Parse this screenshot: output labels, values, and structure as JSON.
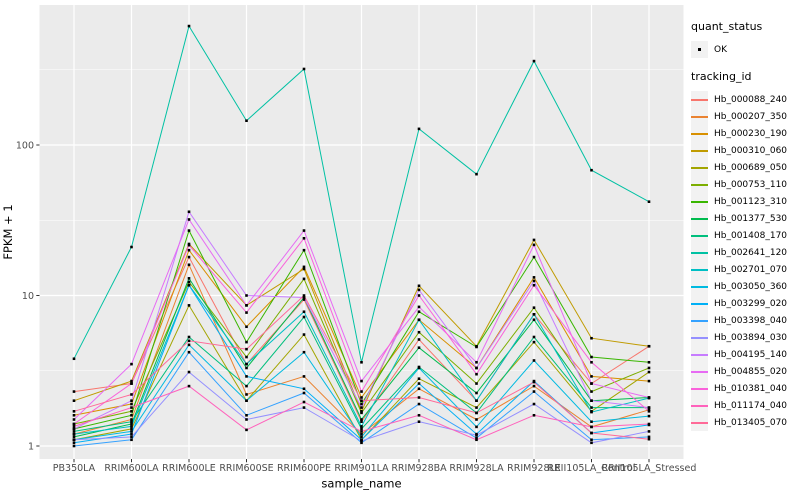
{
  "chart_data": {
    "type": "line",
    "title": "",
    "xlabel": "sample_name",
    "ylabel": "FPKM + 1",
    "y_scale": "log10",
    "ylim": [
      0.82,
      850
    ],
    "grid": true,
    "legend_position": "right",
    "panel_bg": "#EBEBEB",
    "grid_color": "#FFFFFF",
    "tick_label_color": "#4D4D4D",
    "marker": "small-black-square",
    "y_ticks": [
      1,
      10,
      100
    ],
    "y_minor": [
      3.162,
      31.62,
      316.2
    ],
    "categories": [
      "PB350LA",
      "RRIM600LA",
      "RRIM600LE",
      "RRIM600SE",
      "RRIM600PE",
      "RRIM901LA",
      "RRIM928BA",
      "RRIM928LA",
      "RRIM928LE",
      "RRII105LA_Control",
      "RRII105LA_Stressed"
    ],
    "series": [
      {
        "name": "Hb_000088_240",
        "color": "#F8766D",
        "values": [
          2.3,
          2.6,
          18,
          3.5,
          9.4,
          1.45,
          5.1,
          2.0,
          7.5,
          2.6,
          4.6
        ]
      },
      {
        "name": "Hb_000207_350",
        "color": "#EA8331",
        "values": [
          1.2,
          1.5,
          16,
          2.2,
          2.9,
          1.2,
          2.4,
          1.5,
          2.5,
          1.34,
          1.74
        ]
      },
      {
        "name": "Hb_000230_190",
        "color": "#D89000",
        "values": [
          1.6,
          1.9,
          20,
          6.2,
          15.5,
          2.1,
          6.9,
          3.3,
          13.2,
          2.9,
          2.7
        ]
      },
      {
        "name": "Hb_000310_060",
        "color": "#C09B00",
        "values": [
          2.0,
          2.7,
          22,
          8.6,
          15,
          1.7,
          11.6,
          4.6,
          23.4,
          5.2,
          4.6
        ]
      },
      {
        "name": "Hb_000689_050",
        "color": "#A3A500",
        "values": [
          1.1,
          1.3,
          8.6,
          2.0,
          5.5,
          1.1,
          2.8,
          1.8,
          4.9,
          1.7,
          3.1
        ]
      },
      {
        "name": "Hb_000753_110",
        "color": "#7CAE00",
        "values": [
          1.4,
          1.7,
          12.3,
          3.9,
          12.9,
          1.66,
          5.7,
          2.6,
          8.3,
          2.3,
          3.3
        ]
      },
      {
        "name": "Hb_001123_310",
        "color": "#39B600",
        "values": [
          1.3,
          1.6,
          27,
          4.9,
          20,
          1.9,
          7.8,
          4.55,
          18,
          3.9,
          3.6
        ]
      },
      {
        "name": "Hb_001377_530",
        "color": "#00BB4E",
        "values": [
          1.15,
          1.4,
          13,
          3.3,
          9.7,
          1.5,
          4.5,
          2.25,
          6.9,
          2.0,
          2.1
        ]
      },
      {
        "name": "Hb_001408_170",
        "color": "#00BF7D",
        "values": [
          1.25,
          1.45,
          5.3,
          2.5,
          7.2,
          1.3,
          3.35,
          1.66,
          5.3,
          1.8,
          1.8
        ]
      },
      {
        "name": "Hb_002641_120",
        "color": "#00C1A3",
        "values": [
          3.8,
          21,
          617,
          145,
          320,
          3.6,
          128,
          64,
          361,
          68,
          42
        ]
      },
      {
        "name": "Hb_002701_070",
        "color": "#00BFC4",
        "values": [
          1.2,
          1.35,
          11.7,
          3.5,
          7.8,
          1.35,
          6.9,
          2.0,
          7.5,
          1.68,
          2.08
        ]
      },
      {
        "name": "Hb_003050_360",
        "color": "#00BAE0",
        "values": [
          1.1,
          1.25,
          4.7,
          2.0,
          4.2,
          1.15,
          3.3,
          1.34,
          3.7,
          1.45,
          1.58
        ]
      },
      {
        "name": "Hb_003299_020",
        "color": "#00B0F6",
        "values": [
          1.05,
          1.2,
          11.7,
          2.9,
          2.4,
          1.1,
          2.6,
          1.2,
          2.7,
          1.22,
          1.38
        ]
      },
      {
        "name": "Hb_003398_040",
        "color": "#35A2FF",
        "values": [
          1.0,
          1.1,
          4.2,
          1.6,
          2.25,
          1.05,
          1.9,
          1.13,
          2.3,
          1.1,
          1.15
        ]
      },
      {
        "name": "Hb_003894_030",
        "color": "#9590FF",
        "values": [
          1.1,
          1.15,
          3.1,
          1.5,
          1.8,
          1.08,
          1.45,
          1.18,
          1.9,
          1.05,
          1.25
        ]
      },
      {
        "name": "Hb_004195_140",
        "color": "#C77CFF",
        "values": [
          1.3,
          2.0,
          36,
          10,
          9.7,
          1.8,
          10.9,
          3.3,
          12.5,
          2.0,
          1.8
        ]
      },
      {
        "name": "Hb_004855_020",
        "color": "#E76BF3",
        "values": [
          1.5,
          3.5,
          32,
          8.6,
          27,
          2.7,
          8.4,
          3.6,
          21.7,
          2.6,
          2.1
        ]
      },
      {
        "name": "Hb_010381_040",
        "color": "#FA62DB",
        "values": [
          1.4,
          2.6,
          21.6,
          7.7,
          24,
          2.3,
          10.0,
          3.0,
          11.7,
          3.6,
          1.7
        ]
      },
      {
        "name": "Hb_011174_040",
        "color": "#FF62BC",
        "values": [
          1.35,
          1.8,
          2.5,
          1.28,
          1.96,
          1.25,
          1.6,
          1.1,
          1.6,
          1.34,
          1.4
        ]
      },
      {
        "name": "Hb_013405_070",
        "color": "#FF6A98",
        "values": [
          1.7,
          2.2,
          5.0,
          4.4,
          10.0,
          2.0,
          2.1,
          1.66,
          2.66,
          1.22,
          1.11
        ]
      }
    ]
  },
  "legend": {
    "quant_status_title": "quant_status",
    "ok_label": "OK",
    "tracking_title": "tracking_id"
  }
}
